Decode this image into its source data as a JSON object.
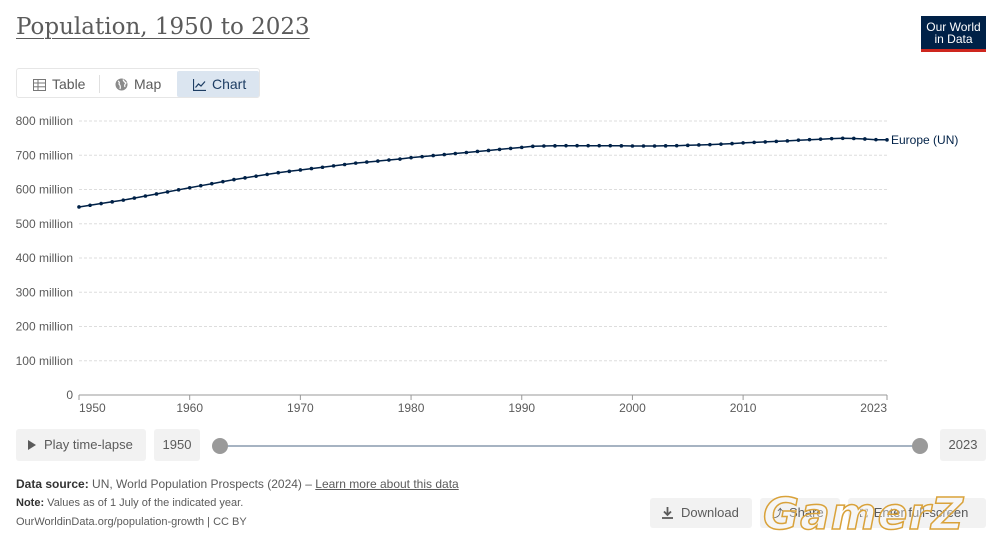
{
  "header": {
    "title": "Population, 1950 to 2023"
  },
  "logo": {
    "line1": "Our World",
    "line2": "in Data"
  },
  "tabs": [
    {
      "label": "Table",
      "icon": "table-icon",
      "active": false
    },
    {
      "label": "Map",
      "icon": "globe-icon",
      "active": false
    },
    {
      "label": "Chart",
      "icon": "line-chart-icon",
      "active": true
    }
  ],
  "chart_data": {
    "type": "line",
    "title": "Population, 1950 to 2023",
    "xlabel": "",
    "ylabel": "",
    "xlim": [
      1950,
      2023
    ],
    "ylim": [
      0,
      800000000
    ],
    "grid": true,
    "x_ticks": [
      1950,
      1960,
      1970,
      1980,
      1990,
      2000,
      2010,
      2023
    ],
    "x_tick_labels": [
      "1950",
      "1960",
      "1970",
      "1980",
      "1990",
      "2000",
      "2010",
      "2023"
    ],
    "y_ticks": [
      0,
      100000000,
      200000000,
      300000000,
      400000000,
      500000000,
      600000000,
      700000000,
      800000000
    ],
    "y_tick_labels": [
      "0",
      "100 million",
      "200 million",
      "300 million",
      "400 million",
      "500 million",
      "600 million",
      "700 million",
      "800 million"
    ],
    "series": [
      {
        "name": "Europe (UN)",
        "color": "#002147",
        "x": [
          1950,
          1951,
          1952,
          1953,
          1954,
          1955,
          1956,
          1957,
          1958,
          1959,
          1960,
          1961,
          1962,
          1963,
          1964,
          1965,
          1966,
          1967,
          1968,
          1969,
          1970,
          1971,
          1972,
          1973,
          1974,
          1975,
          1976,
          1977,
          1978,
          1979,
          1980,
          1981,
          1982,
          1983,
          1984,
          1985,
          1986,
          1987,
          1988,
          1989,
          1990,
          1991,
          1992,
          1993,
          1994,
          1995,
          1996,
          1997,
          1998,
          1999,
          2000,
          2001,
          2002,
          2003,
          2004,
          2005,
          2006,
          2007,
          2008,
          2009,
          2010,
          2011,
          2012,
          2013,
          2014,
          2015,
          2016,
          2017,
          2018,
          2019,
          2020,
          2021,
          2022,
          2023
        ],
        "values": [
          549000000,
          554000000,
          559000000,
          564000000,
          569000000,
          575000000,
          581000000,
          587000000,
          593000000,
          599000000,
          605000000,
          611000000,
          617000000,
          623000000,
          629000000,
          634000000,
          639000000,
          644000000,
          649000000,
          653000000,
          657000000,
          661000000,
          665000000,
          669000000,
          673000000,
          677000000,
          680000000,
          683000000,
          686000000,
          689000000,
          693000000,
          696000000,
          699000000,
          702000000,
          705000000,
          708000000,
          711000000,
          714000000,
          717000000,
          720000000,
          723000000,
          726000000,
          727000000,
          727500000,
          728000000,
          728000000,
          728000000,
          728000000,
          728000000,
          727500000,
          727000000,
          727000000,
          727000000,
          727500000,
          728000000,
          729000000,
          730000000,
          731000000,
          732500000,
          734000000,
          736000000,
          737500000,
          739000000,
          740500000,
          742000000,
          744000000,
          745500000,
          747000000,
          748500000,
          749500000,
          749000000,
          747500000,
          745500000,
          745000000
        ]
      }
    ]
  },
  "controls": {
    "play_label": "Play time-lapse",
    "start_year": "1950",
    "end_year": "2023",
    "slider_start": 0,
    "slider_end": 1
  },
  "footer": {
    "source_label": "Data source:",
    "source_text": "UN, World Population Prospects (2024) –",
    "learn_more": "Learn more about this data",
    "note_label": "Note:",
    "note_text": "Values as of 1 July of the indicated year.",
    "url_text": "OurWorldinData.org/population-growth | CC BY"
  },
  "actions": {
    "download": "Download",
    "share": "Share",
    "fullscreen": "Enter full-screen"
  },
  "watermark": "GamerZ"
}
